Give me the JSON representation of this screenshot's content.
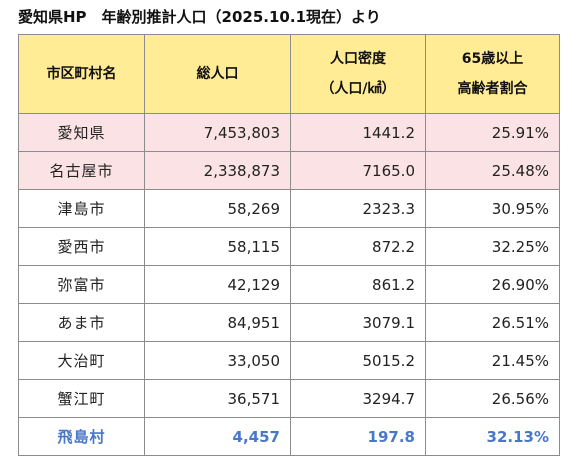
{
  "title": "愛知県HP　年齢別推計人口（2025.10.1現在）より",
  "headers": {
    "name": "市区町村名",
    "population": "総人口",
    "density_line1": "人口密度",
    "density_line2": "（人口/㎢）",
    "ratio_line1": "65歳以上",
    "ratio_line2": "高齢者割合"
  },
  "colors": {
    "header_bg": "#ffec94",
    "highlight_row_bg": "#fbe3e5",
    "accent_text": "#4a78c8"
  },
  "rows": [
    {
      "name": "愛知県",
      "population": "7,453,803",
      "density": "1441.2",
      "ratio": "25.91%",
      "style": "pink"
    },
    {
      "name": "名古屋市",
      "population": "2,338,873",
      "density": "7165.0",
      "ratio": "25.48%",
      "style": "pink"
    },
    {
      "name": "津島市",
      "population": "58,269",
      "density": "2323.3",
      "ratio": "30.95%",
      "style": "normal"
    },
    {
      "name": "愛西市",
      "population": "58,115",
      "density": "872.2",
      "ratio": "32.25%",
      "style": "normal"
    },
    {
      "name": "弥富市",
      "population": "42,129",
      "density": "861.2",
      "ratio": "26.90%",
      "style": "normal"
    },
    {
      "name": "あま市",
      "population": "84,951",
      "density": "3079.1",
      "ratio": "26.51%",
      "style": "normal"
    },
    {
      "name": "大治町",
      "population": "33,050",
      "density": "5015.2",
      "ratio": "21.45%",
      "style": "normal"
    },
    {
      "name": "蟹江町",
      "population": "36,571",
      "density": "3294.7",
      "ratio": "26.56%",
      "style": "normal"
    },
    {
      "name": "飛島村",
      "population": "4,457",
      "density": "197.8",
      "ratio": "32.13%",
      "style": "accent"
    }
  ]
}
